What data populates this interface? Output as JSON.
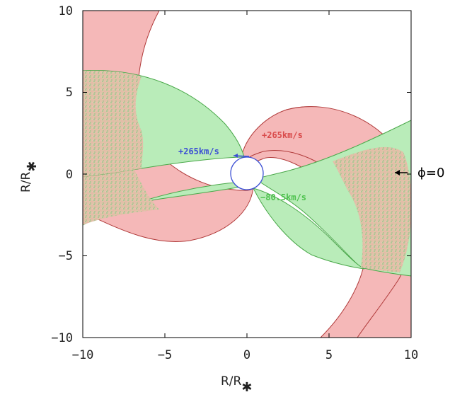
{
  "chart_data": {
    "type": "diagram",
    "xlabel": "R/R",
    "xlabel_sub": "✱",
    "ylabel": "R/R",
    "ylabel_sub": "✱",
    "xlim": [
      -10,
      10
    ],
    "ylim": [
      -10,
      10
    ],
    "xticks": [
      {
        "value": -10,
        "label": "−10"
      },
      {
        "value": -5,
        "label": "−5"
      },
      {
        "value": 0,
        "label": "0"
      },
      {
        "value": 5,
        "label": "5"
      },
      {
        "value": 10,
        "label": "10"
      }
    ],
    "yticks": [
      {
        "value": 10,
        "label": "10"
      },
      {
        "value": 5,
        "label": "5"
      },
      {
        "value": 0,
        "label": "0"
      },
      {
        "value": -5,
        "label": "−5"
      },
      {
        "value": -10,
        "label": "−10"
      }
    ],
    "annotations": [
      {
        "text": "+265km/s",
        "x": 2.4,
        "y": 2.2,
        "color": "#d94b4b"
      },
      {
        "text": "+265km/s",
        "x": -2.7,
        "y": 1.2,
        "color": "#3b4fd4"
      },
      {
        "text": "−80.5km/s",
        "x": 2.6,
        "y": -1.6,
        "color": "#4ec24e"
      },
      {
        "text": "ϕ=0",
        "x": 12.0,
        "y": 0.0,
        "color": "#000000"
      }
    ],
    "star_radius": 1.0,
    "colors": {
      "red_fill": "#f5b8b8",
      "red_edge": "#b03a3a",
      "green_fill": "#b9ecb9",
      "green_edge": "#4aa84a",
      "star": "#3b4fd4"
    }
  }
}
